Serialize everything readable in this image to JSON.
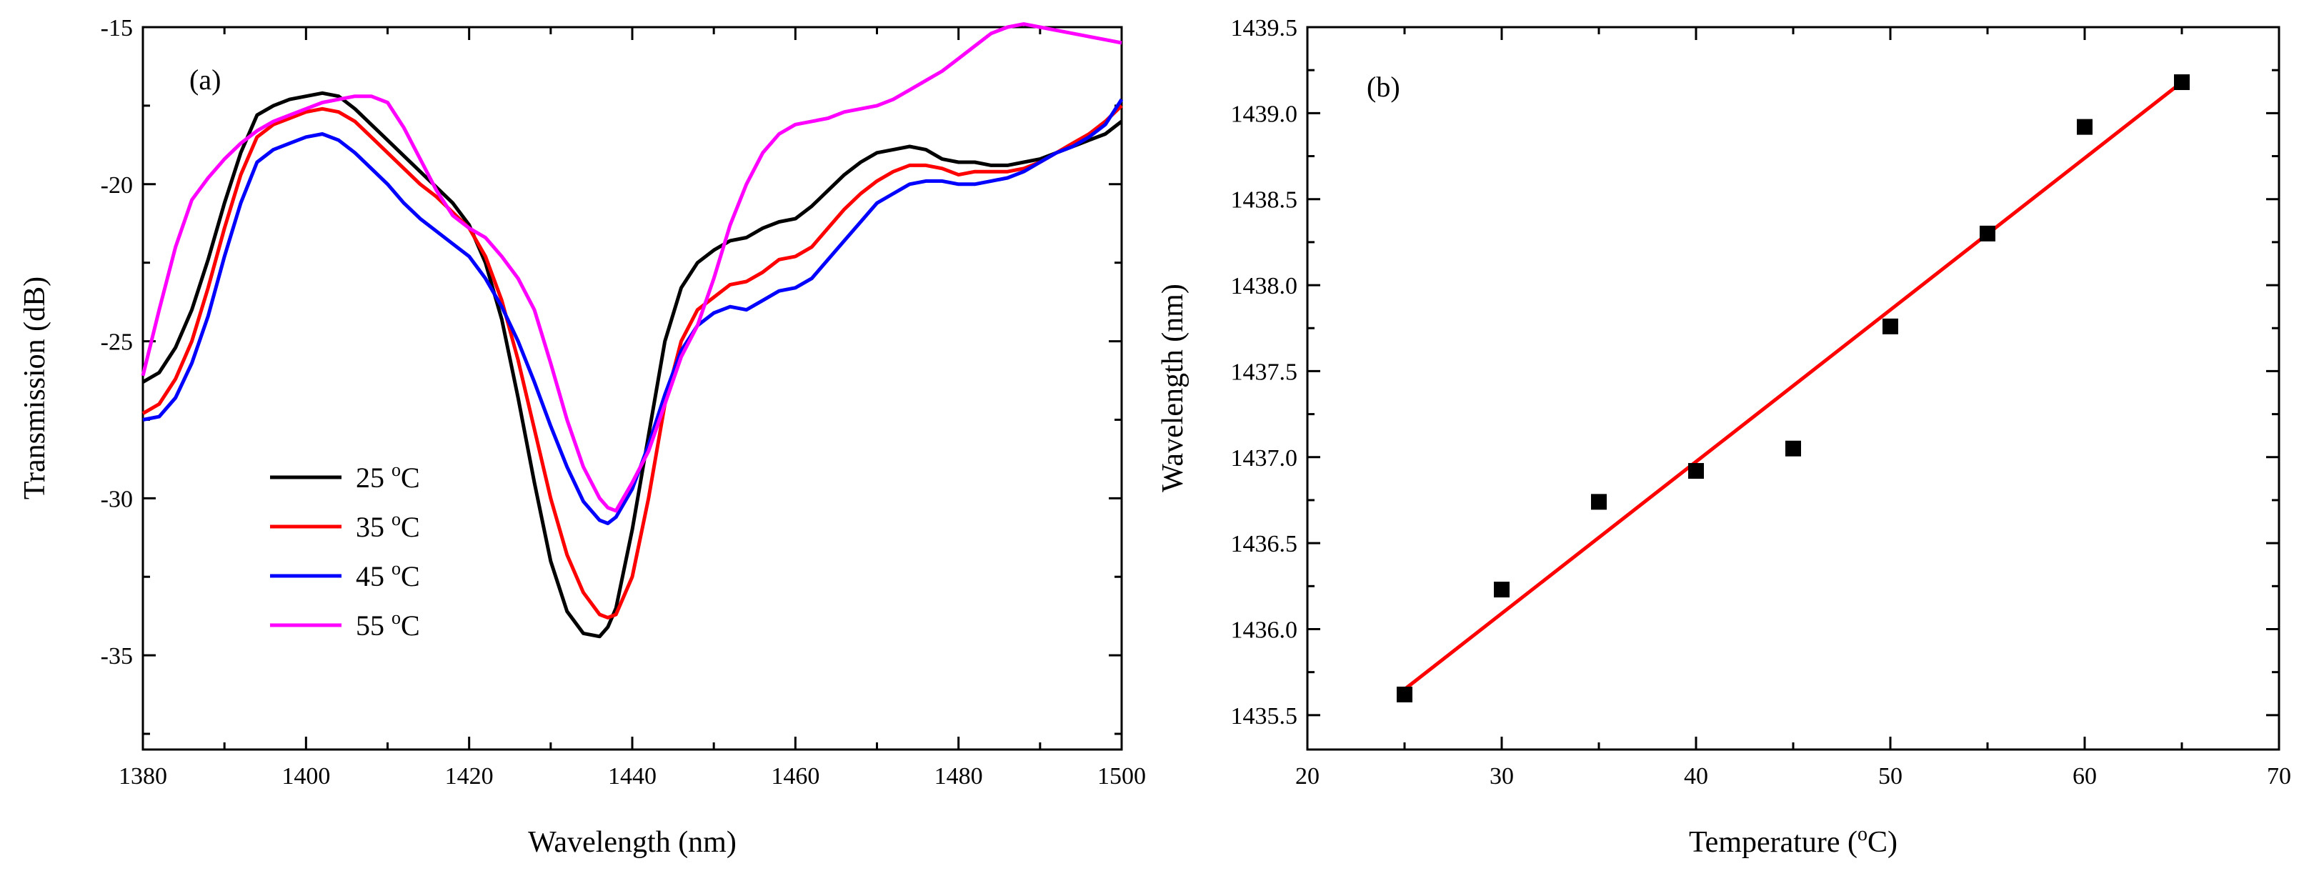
{
  "chart_data": [
    {
      "type": "line",
      "panel_label": "(a)",
      "xlabel": "Wavelength (nm)",
      "ylabel": "Transmission (dB)",
      "xlim": [
        1380,
        1500
      ],
      "ylim": [
        -38,
        -15
      ],
      "xticks": [
        1380,
        1400,
        1420,
        1440,
        1460,
        1480,
        1500
      ],
      "xtick_labels": [
        "1380",
        "1400",
        "1420",
        "1440",
        "1460",
        "1480",
        "1500"
      ],
      "yticks": [
        -35,
        -30,
        -25,
        -20,
        -15
      ],
      "ytick_labels": [
        "-35",
        "-30",
        "-25",
        "-20",
        "-15"
      ],
      "legend_position": "lower-left",
      "series": [
        {
          "name": "25 °C",
          "label_num": "25",
          "label_deg": "o",
          "label_unit": "C",
          "color": "#000000",
          "x": [
            1380,
            1382,
            1384,
            1386,
            1388,
            1390,
            1392,
            1394,
            1396,
            1398,
            1400,
            1402,
            1404,
            1406,
            1408,
            1410,
            1412,
            1414,
            1416,
            1418,
            1420,
            1422,
            1424,
            1426,
            1428,
            1430,
            1432,
            1434,
            1436,
            1437,
            1438,
            1440,
            1442,
            1444,
            1446,
            1448,
            1450,
            1452,
            1454,
            1456,
            1458,
            1460,
            1462,
            1464,
            1466,
            1468,
            1470,
            1472,
            1474,
            1476,
            1478,
            1480,
            1482,
            1484,
            1486,
            1488,
            1490,
            1492,
            1494,
            1496,
            1498,
            1500
          ],
          "y": [
            -26.3,
            -26,
            -25.2,
            -24,
            -22.4,
            -20.6,
            -19,
            -17.8,
            -17.5,
            -17.3,
            -17.2,
            -17.1,
            -17.2,
            -17.6,
            -18.1,
            -18.6,
            -19.1,
            -19.6,
            -20.1,
            -20.6,
            -21.3,
            -22.5,
            -24.3,
            -26.8,
            -29.5,
            -32,
            -33.6,
            -34.3,
            -34.4,
            -34.1,
            -33.5,
            -31,
            -28,
            -25,
            -23.3,
            -22.5,
            -22.1,
            -21.8,
            -21.7,
            -21.4,
            -21.2,
            -21.1,
            -20.7,
            -20.2,
            -19.7,
            -19.3,
            -19,
            -18.9,
            -18.8,
            -18.9,
            -19.2,
            -19.3,
            -19.3,
            -19.4,
            -19.4,
            -19.3,
            -19.2,
            -19,
            -18.8,
            -18.6,
            -18.4,
            -18
          ]
        },
        {
          "name": "35 °C",
          "label_num": "35",
          "label_deg": "o",
          "label_unit": "C",
          "color": "#ff0000",
          "x": [
            1380,
            1382,
            1384,
            1386,
            1388,
            1390,
            1392,
            1394,
            1396,
            1398,
            1400,
            1402,
            1404,
            1406,
            1408,
            1410,
            1412,
            1414,
            1416,
            1418,
            1420,
            1422,
            1424,
            1426,
            1428,
            1430,
            1432,
            1434,
            1436,
            1437,
            1438,
            1440,
            1442,
            1444,
            1446,
            1448,
            1450,
            1452,
            1454,
            1456,
            1458,
            1460,
            1462,
            1464,
            1466,
            1468,
            1470,
            1472,
            1474,
            1476,
            1478,
            1480,
            1482,
            1484,
            1486,
            1488,
            1490,
            1492,
            1494,
            1496,
            1498,
            1500
          ],
          "y": [
            -27.3,
            -27,
            -26.2,
            -25,
            -23.3,
            -21.4,
            -19.7,
            -18.5,
            -18.1,
            -17.9,
            -17.7,
            -17.6,
            -17.7,
            -18,
            -18.5,
            -19,
            -19.5,
            -20,
            -20.4,
            -20.9,
            -21.4,
            -22.3,
            -23.7,
            -25.6,
            -27.8,
            -30,
            -31.8,
            -33,
            -33.7,
            -33.8,
            -33.7,
            -32.5,
            -30,
            -27,
            -25,
            -24,
            -23.6,
            -23.2,
            -23.1,
            -22.8,
            -22.4,
            -22.3,
            -22,
            -21.4,
            -20.8,
            -20.3,
            -19.9,
            -19.6,
            -19.4,
            -19.4,
            -19.5,
            -19.7,
            -19.6,
            -19.6,
            -19.6,
            -19.5,
            -19.3,
            -19,
            -18.7,
            -18.4,
            -18,
            -17.5
          ]
        },
        {
          "name": "45 °C",
          "label_num": "45",
          "label_deg": "o",
          "label_unit": "C",
          "color": "#0000ff",
          "x": [
            1380,
            1382,
            1384,
            1386,
            1388,
            1390,
            1392,
            1394,
            1396,
            1398,
            1400,
            1402,
            1404,
            1406,
            1408,
            1410,
            1412,
            1414,
            1416,
            1418,
            1420,
            1422,
            1424,
            1426,
            1428,
            1430,
            1432,
            1434,
            1436,
            1437,
            1438,
            1440,
            1442,
            1444,
            1446,
            1448,
            1450,
            1452,
            1454,
            1456,
            1458,
            1460,
            1462,
            1464,
            1466,
            1468,
            1470,
            1472,
            1474,
            1476,
            1478,
            1480,
            1482,
            1484,
            1486,
            1488,
            1490,
            1492,
            1494,
            1496,
            1498,
            1500
          ],
          "y": [
            -27.5,
            -27.4,
            -26.8,
            -25.7,
            -24.2,
            -22.3,
            -20.6,
            -19.3,
            -18.9,
            -18.7,
            -18.5,
            -18.4,
            -18.6,
            -19,
            -19.5,
            -20,
            -20.6,
            -21.1,
            -21.5,
            -21.9,
            -22.3,
            -23,
            -23.9,
            -25,
            -26.3,
            -27.7,
            -29,
            -30.1,
            -30.7,
            -30.8,
            -30.6,
            -29.7,
            -28.3,
            -26.7,
            -25.3,
            -24.5,
            -24.1,
            -23.9,
            -24,
            -23.7,
            -23.4,
            -23.3,
            -23,
            -22.4,
            -21.8,
            -21.2,
            -20.6,
            -20.3,
            -20,
            -19.9,
            -19.9,
            -20,
            -20,
            -19.9,
            -19.8,
            -19.6,
            -19.3,
            -19,
            -18.8,
            -18.5,
            -18.1,
            -17.3
          ]
        },
        {
          "name": "55 °C",
          "label_num": "55",
          "label_deg": "o",
          "label_unit": "C",
          "color": "#ff00ff",
          "x": [
            1380,
            1382,
            1384,
            1386,
            1388,
            1390,
            1392,
            1394,
            1396,
            1398,
            1400,
            1402,
            1404,
            1406,
            1408,
            1410,
            1412,
            1414,
            1416,
            1418,
            1420,
            1422,
            1424,
            1426,
            1428,
            1430,
            1432,
            1434,
            1436,
            1437,
            1438,
            1440,
            1442,
            1444,
            1446,
            1448,
            1450,
            1452,
            1454,
            1456,
            1458,
            1460,
            1462,
            1464,
            1466,
            1468,
            1470,
            1472,
            1474,
            1476,
            1478,
            1480,
            1482,
            1484,
            1486,
            1488,
            1490,
            1492,
            1494,
            1496,
            1498,
            1500
          ],
          "y": [
            -26.1,
            -24,
            -22,
            -20.5,
            -19.8,
            -19.2,
            -18.7,
            -18.3,
            -18,
            -17.8,
            -17.6,
            -17.4,
            -17.3,
            -17.2,
            -17.2,
            -17.4,
            -18.2,
            -19.2,
            -20.2,
            -21,
            -21.4,
            -21.7,
            -22.3,
            -23,
            -24,
            -25.7,
            -27.5,
            -29,
            -30,
            -30.3,
            -30.4,
            -29.5,
            -28.5,
            -27,
            -25.5,
            -24.5,
            -23,
            -21.3,
            -20,
            -19,
            -18.4,
            -18.1,
            -18,
            -17.9,
            -17.7,
            -17.6,
            -17.5,
            -17.3,
            -17,
            -16.7,
            -16.4,
            -16,
            -15.6,
            -15.2,
            -15,
            -14.9,
            -15,
            -15.1,
            -15.2,
            -15.3,
            -15.4,
            -15.5
          ]
        }
      ]
    },
    {
      "type": "scatter",
      "panel_label": "(b)",
      "xlabel_main": "Temperature (",
      "xlabel_sup": "o",
      "xlabel_end": "C)",
      "ylabel": "Wavelength (nm)",
      "xlim": [
        20,
        70
      ],
      "ylim": [
        1435.3,
        1439.5
      ],
      "xticks": [
        20,
        30,
        40,
        50,
        60,
        70
      ],
      "xtick_labels": [
        "20",
        "30",
        "40",
        "50",
        "60",
        "70"
      ],
      "yticks": [
        1435.5,
        1436.0,
        1436.5,
        1437.0,
        1437.5,
        1438.0,
        1438.5,
        1439.0,
        1439.5
      ],
      "ytick_labels": [
        "1435.5",
        "1436.0",
        "1436.5",
        "1437.0",
        "1437.5",
        "1438.0",
        "1438.5",
        "1439.0",
        "1439.5"
      ],
      "marker_color": "#000000",
      "points": {
        "x": [
          25,
          30,
          35,
          40,
          45,
          50,
          55,
          60,
          65
        ],
        "y": [
          1435.62,
          1436.23,
          1436.74,
          1436.92,
          1437.05,
          1437.76,
          1438.3,
          1438.92,
          1439.18
        ]
      },
      "fit": {
        "color": "#ff0000",
        "x": [
          25,
          65
        ],
        "y": [
          1435.65,
          1439.18
        ]
      }
    }
  ]
}
